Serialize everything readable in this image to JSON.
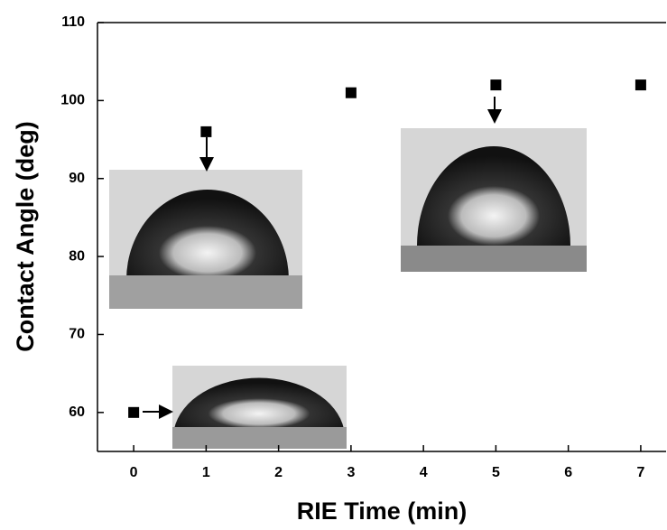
{
  "chart_data": {
    "type": "scatter",
    "x_label": "RIE Time (min)",
    "y_label": "Contact Angle (deg)",
    "series": [
      {
        "color": "#000000",
        "x": [
          0,
          1,
          3,
          5,
          7
        ],
        "values": [
          60,
          96,
          101,
          102,
          102
        ]
      }
    ],
    "xlim": [
      -0.5,
      7.35
    ],
    "xticks": [
      0,
      1,
      2,
      3,
      4,
      5,
      6,
      7
    ],
    "ylim": [
      55,
      110
    ],
    "yticks": [
      60,
      70,
      80,
      90,
      100,
      110
    ]
  }
}
